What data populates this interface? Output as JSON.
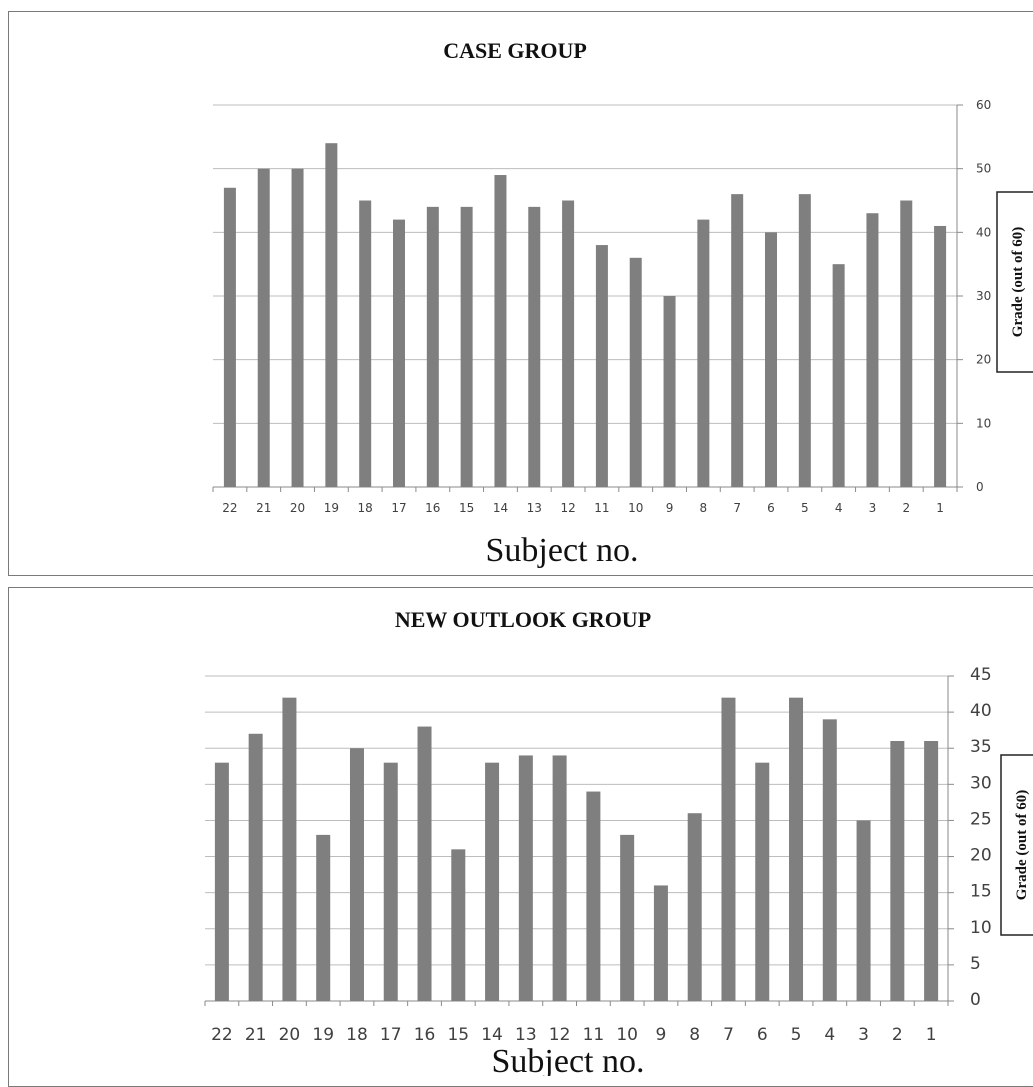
{
  "chart_data": [
    {
      "type": "bar",
      "title": "CASE GROUP",
      "xlabel": "Subject no.",
      "ylabel": "Grade (out of 60)",
      "ylim": [
        0,
        60
      ],
      "yticks": [
        0,
        10,
        20,
        30,
        40,
        50,
        60
      ],
      "categories": [
        "22",
        "21",
        "20",
        "19",
        "18",
        "17",
        "16",
        "15",
        "14",
        "13",
        "12",
        "11",
        "10",
        "9",
        "8",
        "7",
        "6",
        "5",
        "4",
        "3",
        "2",
        "1"
      ],
      "values": [
        47,
        50,
        50,
        54,
        45,
        42,
        44,
        44,
        49,
        44,
        45,
        38,
        36,
        30,
        42,
        46,
        40,
        46,
        35,
        43,
        45,
        41
      ],
      "grid": true,
      "bar_color": "#7f7f7f"
    },
    {
      "type": "bar",
      "title": "NEW OUTLOOK GROUP",
      "xlabel": "Subject no.",
      "ylabel": "Grade (out of 60)",
      "ylim": [
        0,
        45
      ],
      "yticks": [
        0,
        5,
        10,
        15,
        20,
        25,
        30,
        35,
        40,
        45
      ],
      "categories": [
        "22",
        "21",
        "20",
        "19",
        "18",
        "17",
        "16",
        "15",
        "14",
        "13",
        "12",
        "11",
        "10",
        "9",
        "8",
        "7",
        "6",
        "5",
        "4",
        "3",
        "2",
        "1"
      ],
      "values": [
        33,
        37,
        42,
        23,
        35,
        33,
        38,
        21,
        33,
        34,
        34,
        29,
        23,
        16,
        26,
        42,
        33,
        42,
        39,
        25,
        36,
        36
      ],
      "grid": true,
      "bar_color": "#7f7f7f"
    }
  ]
}
